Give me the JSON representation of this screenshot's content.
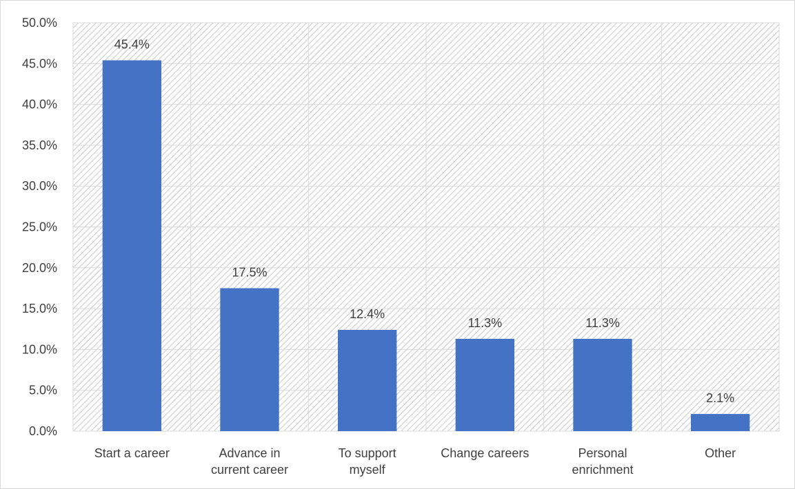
{
  "chart_data": {
    "type": "bar",
    "categories": [
      [
        "Start a career"
      ],
      [
        "Advance in",
        "current career"
      ],
      [
        "To support",
        "myself"
      ],
      [
        "Change careers"
      ],
      [
        "Personal",
        "enrichment"
      ],
      [
        "Other"
      ]
    ],
    "values": [
      45.4,
      17.5,
      12.4,
      11.3,
      11.3,
      2.1
    ],
    "data_labels": [
      "45.4%",
      "17.5%",
      "12.4%",
      "11.3%",
      "11.3%",
      "2.1%"
    ],
    "y_ticks": [
      {
        "value": 0,
        "label": "0.0%"
      },
      {
        "value": 5,
        "label": "5.0%"
      },
      {
        "value": 10,
        "label": "10.0%"
      },
      {
        "value": 15,
        "label": "15.0%"
      },
      {
        "value": 20,
        "label": "20.0%"
      },
      {
        "value": 25,
        "label": "25.0%"
      },
      {
        "value": 30,
        "label": "30.0%"
      },
      {
        "value": 35,
        "label": "35.0%"
      },
      {
        "value": 40,
        "label": "40.0%"
      },
      {
        "value": 45,
        "label": "45.0%"
      },
      {
        "value": 50,
        "label": "50.0%"
      }
    ],
    "ylim": [
      0,
      50
    ],
    "title": "",
    "xlabel": "",
    "ylabel": "",
    "grid": true,
    "legend": "none",
    "bar_color": "#4472c4",
    "plot_background": "hatched-gray"
  }
}
